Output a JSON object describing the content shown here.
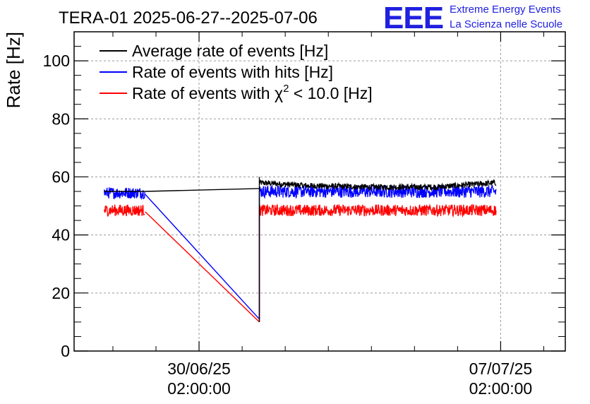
{
  "header": {
    "title": "TERA-01 2025-06-27--2025-07-06",
    "logo_text": "EEE",
    "logo_line1": "Extreme Energy Events",
    "logo_line2": "La Scienza nelle Scuole"
  },
  "chart_data": {
    "type": "line",
    "ylabel": "Rate [Hz]",
    "ylim": [
      0,
      110
    ],
    "yticks": [
      0,
      20,
      40,
      60,
      80,
      100
    ],
    "xlim_days": [
      -2.9,
      8.5
    ],
    "xticks": [
      {
        "day": 0,
        "date": "30/06/25",
        "time": "02:00:00"
      },
      {
        "day": 7,
        "date": "07/07/25",
        "time": "02:00:00"
      }
    ],
    "grid": true,
    "legend_position": "top-left",
    "legend": [
      {
        "label_main": "Average rate of events [Hz]",
        "color": "#000000"
      },
      {
        "label_main": "Rate of events with hits [Hz]",
        "color": "#0000ff"
      },
      {
        "label_main": "Rate of events with χ",
        "label_sup": "2",
        "label_rest": " < 10.0 [Hz]",
        "color": "#ff0000"
      }
    ],
    "series": [
      {
        "name": "Average rate of events [Hz]",
        "color": "#000000",
        "segments": [
          {
            "x": [
              -2.2,
              -1.25
            ],
            "y": [
              55,
              55
            ],
            "noise": 0
          },
          {
            "x": [
              -1.25,
              1.4
            ],
            "y": [
              55,
              56
            ],
            "noise": 0
          },
          {
            "x": [
              1.4,
              1.4
            ],
            "y": [
              10,
              60
            ],
            "noise": 0
          },
          {
            "x": [
              1.4,
              2.5,
              4.0,
              5.5,
              6.9
            ],
            "y": [
              58,
              57,
              56.5,
              56.5,
              58
            ],
            "noise": 1.0
          }
        ]
      },
      {
        "name": "Rate of events with hits [Hz]",
        "color": "#0000ff",
        "segments": [
          {
            "x": [
              -2.2,
              -1.25
            ],
            "y": [
              54.5,
              54.5
            ],
            "noise": 2.0
          },
          {
            "x": [
              -1.25,
              1.4
            ],
            "y": [
              54,
              11
            ],
            "noise": 0
          },
          {
            "x": [
              1.4,
              1.4
            ],
            "y": [
              11,
              55
            ],
            "noise": 0
          },
          {
            "x": [
              1.4,
              6.9
            ],
            "y": [
              55,
              55
            ],
            "noise": 2.2
          }
        ]
      },
      {
        "name": "Rate of events with χ2 < 10.0 [Hz]",
        "color": "#ff0000",
        "segments": [
          {
            "x": [
              -2.2,
              -1.25
            ],
            "y": [
              48.5,
              48.5
            ],
            "noise": 2.0
          },
          {
            "x": [
              -1.25,
              1.4
            ],
            "y": [
              48,
              10
            ],
            "noise": 0
          },
          {
            "x": [
              1.4,
              1.4
            ],
            "y": [
              10,
              48.5
            ],
            "noise": 0
          },
          {
            "x": [
              1.4,
              6.9
            ],
            "y": [
              48.5,
              48.5
            ],
            "noise": 2.0
          }
        ]
      }
    ]
  }
}
